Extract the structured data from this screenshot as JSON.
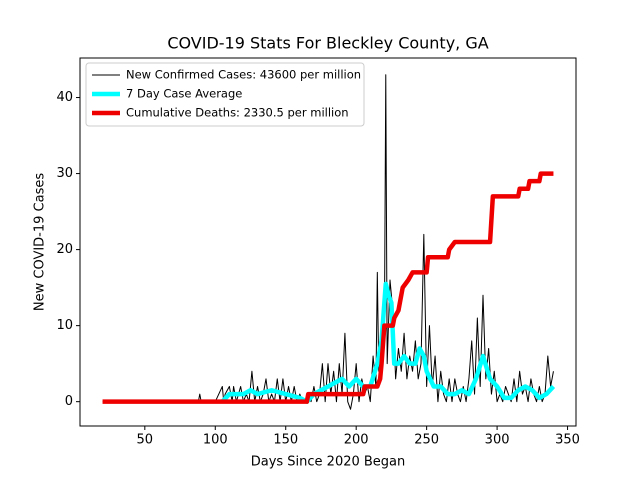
{
  "chart_data": {
    "type": "line",
    "title": "COVID-19 Stats For Bleckley County, GA",
    "xlabel": "Days Since 2020 Began",
    "ylabel": "New COVID-19 Cases",
    "xlim": [
      4,
      356
    ],
    "xticks": [
      50,
      100,
      150,
      200,
      250,
      300,
      350
    ],
    "ylim": [
      -3.2,
      45.2
    ],
    "yticks": [
      0,
      10,
      20,
      30,
      40
    ],
    "grid": false,
    "legend": "upper left",
    "series": [
      {
        "name": "New Confirmed Cases: 43600 per million",
        "color": "#000000",
        "linewidth": 1,
        "x": [
          20,
          88,
          89,
          90,
          100,
          105,
          106,
          107,
          110,
          112,
          113,
          115,
          118,
          120,
          122,
          124,
          126,
          128,
          130,
          132,
          134,
          136,
          138,
          140,
          142,
          144,
          146,
          148,
          150,
          152,
          154,
          156,
          158,
          160,
          162,
          164,
          166,
          168,
          170,
          172,
          174,
          176,
          178,
          180,
          182,
          184,
          186,
          188,
          190,
          192,
          194,
          196,
          198,
          200,
          202,
          204,
          206,
          208,
          210,
          212,
          214,
          215,
          216,
          218,
          220,
          221,
          222,
          224,
          226,
          228,
          230,
          232,
          234,
          236,
          238,
          240,
          242,
          244,
          246,
          248,
          250,
          252,
          254,
          256,
          258,
          260,
          262,
          264,
          266,
          268,
          270,
          272,
          274,
          276,
          278,
          280,
          282,
          284,
          286,
          288,
          290,
          292,
          294,
          296,
          298,
          300,
          302,
          304,
          306,
          308,
          310,
          312,
          314,
          316,
          318,
          320,
          322,
          324,
          326,
          328,
          330,
          332,
          334,
          336,
          338,
          340
        ],
        "values": [
          0,
          0,
          1,
          0,
          0,
          2,
          0,
          1,
          2,
          0,
          2,
          0,
          2,
          0,
          1,
          0,
          4,
          0,
          2,
          0,
          1,
          3,
          0,
          1,
          0,
          3,
          0,
          3,
          0,
          2,
          0,
          2,
          0,
          1,
          0,
          0,
          1,
          0,
          2,
          0,
          1,
          5,
          0,
          5,
          1,
          4,
          0,
          5,
          1,
          9,
          0,
          -1,
          1,
          5,
          0,
          3,
          1,
          2,
          0,
          6,
          2,
          17,
          4,
          10,
          8,
          43,
          5,
          16,
          12,
          3,
          7,
          4,
          9,
          3,
          6,
          4,
          8,
          3,
          5,
          22,
          2,
          10,
          2,
          6,
          0,
          4,
          1,
          0,
          3,
          0,
          3,
          1,
          0,
          2,
          0,
          3,
          8,
          1,
          11,
          2,
          14,
          3,
          7,
          1,
          4,
          0,
          1,
          0,
          2,
          1,
          0,
          3,
          0,
          4,
          1,
          2,
          0,
          3,
          1,
          0,
          2,
          0,
          1,
          6,
          2,
          4
        ]
      },
      {
        "name": "7 Day Case Average",
        "color": "#00ffff",
        "linewidth": 4.5,
        "x": [
          105,
          110,
          120,
          125,
          130,
          140,
          150,
          160,
          165,
          170,
          180,
          185,
          190,
          195,
          200,
          205,
          210,
          215,
          218,
          221,
          223,
          225,
          227,
          230,
          234,
          238,
          242,
          245,
          248,
          250,
          255,
          260,
          265,
          270,
          275,
          280,
          285,
          290,
          295,
          300,
          305,
          310,
          315,
          320,
          325,
          330,
          335,
          340
        ],
        "values": [
          0,
          1,
          1,
          1.5,
          1,
          1.5,
          1,
          0.5,
          0,
          1,
          2,
          2.5,
          3,
          2,
          3,
          2,
          2,
          5,
          8,
          15.5,
          14,
          13,
          5,
          5,
          6,
          5,
          5,
          7,
          6,
          4,
          2,
          2,
          1,
          1,
          1.5,
          1,
          3,
          6,
          3,
          2,
          0.5,
          0.5,
          1.5,
          2,
          1.5,
          0.5,
          1,
          2
        ]
      },
      {
        "name": "Cumulative Deaths: 2330.5 per million",
        "color": "#ee0000",
        "linewidth": 4.5,
        "x": [
          20,
          165,
          166,
          205,
          206,
          215,
          217,
          218,
          220,
          226,
          227,
          230,
          233,
          237,
          240,
          250,
          251,
          265,
          266,
          270,
          295,
          297,
          315,
          316,
          322,
          323,
          330,
          331,
          340
        ],
        "values": [
          0,
          0,
          1,
          1,
          2,
          2,
          3,
          5,
          10,
          10,
          11,
          12,
          15,
          16,
          17,
          17,
          19,
          19,
          20,
          21,
          21,
          27,
          27,
          28,
          28,
          29,
          29,
          30,
          30
        ]
      }
    ]
  }
}
